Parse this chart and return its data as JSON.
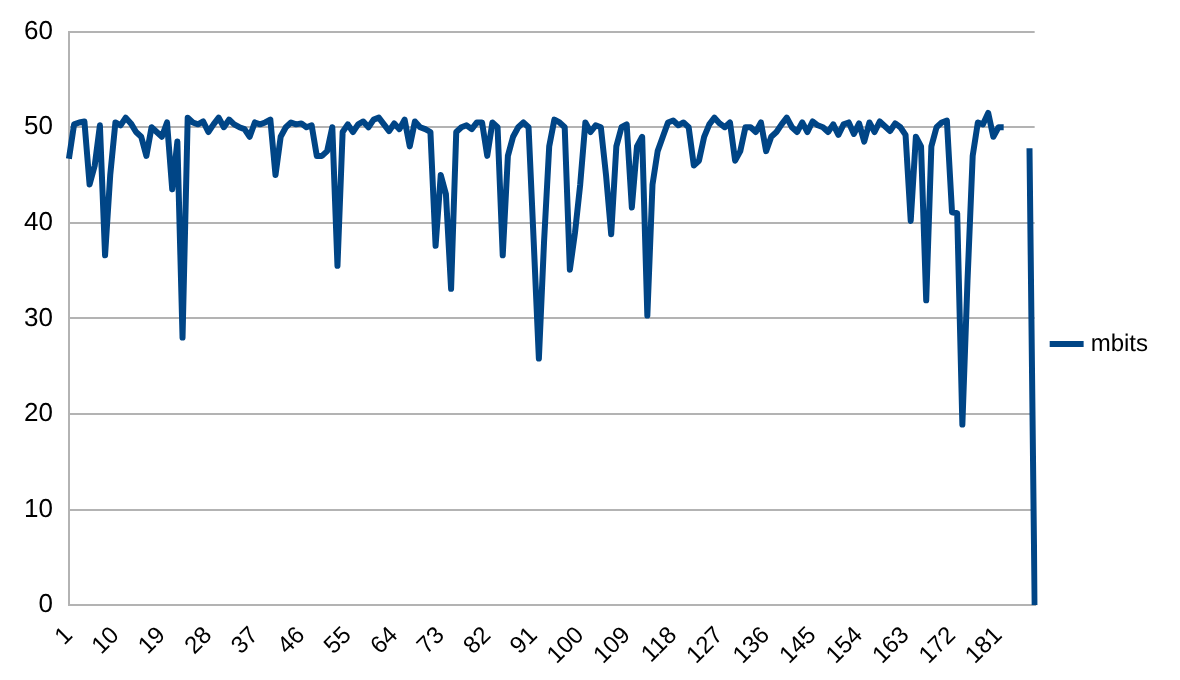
{
  "chart_data": {
    "type": "line",
    "categories": [
      "1",
      null,
      null,
      null,
      null,
      null,
      null,
      null,
      null,
      "10",
      null,
      null,
      null,
      null,
      null,
      null,
      null,
      null,
      "19",
      null,
      null,
      null,
      null,
      null,
      null,
      null,
      null,
      "28",
      null,
      null,
      null,
      null,
      null,
      null,
      null,
      null,
      "37",
      null,
      null,
      null,
      null,
      null,
      null,
      null,
      null,
      "46",
      null,
      null,
      null,
      null,
      null,
      null,
      null,
      null,
      "55",
      null,
      null,
      null,
      null,
      null,
      null,
      null,
      null,
      "64",
      null,
      null,
      null,
      null,
      null,
      null,
      null,
      null,
      "73",
      null,
      null,
      null,
      null,
      null,
      null,
      null,
      null,
      "82",
      null,
      null,
      null,
      null,
      null,
      null,
      null,
      null,
      "91",
      null,
      null,
      null,
      null,
      null,
      null,
      null,
      null,
      "100",
      null,
      null,
      null,
      null,
      null,
      null,
      null,
      null,
      "109",
      null,
      null,
      null,
      null,
      null,
      null,
      null,
      null,
      "118",
      null,
      null,
      null,
      null,
      null,
      null,
      null,
      null,
      "127",
      null,
      null,
      null,
      null,
      null,
      null,
      null,
      null,
      "136",
      null,
      null,
      null,
      null,
      null,
      null,
      null,
      null,
      "145",
      null,
      null,
      null,
      null,
      null,
      null,
      null,
      null,
      "154",
      null,
      null,
      null,
      null,
      null,
      null,
      null,
      null,
      "163",
      null,
      null,
      null,
      null,
      null,
      null,
      null,
      null,
      "172",
      null,
      null,
      null,
      null,
      null,
      null,
      null,
      null,
      "181",
      null,
      null,
      null,
      null,
      null,
      null,
      null
    ],
    "series": [
      {
        "name": "mbits",
        "color": "#004586",
        "values": [
          46.7,
          50.3,
          50.5,
          50.6,
          44,
          46,
          50.2,
          36.6,
          45,
          50.5,
          50.2,
          51,
          50.4,
          49.5,
          49,
          47,
          50,
          49.5,
          49,
          50.5,
          43.5,
          48.5,
          28,
          51,
          50.5,
          50.3,
          50.6,
          49.5,
          50.3,
          51,
          50,
          50.8,
          50.3,
          50,
          49.8,
          49,
          50.5,
          50.3,
          50.5,
          50.8,
          45,
          49,
          50,
          50.5,
          50.3,
          50.4,
          50,
          50.2,
          47,
          47,
          47.5,
          50,
          35.5,
          49.5,
          50.3,
          49.5,
          50.3,
          50.6,
          50,
          50.8,
          51,
          50.3,
          49.6,
          50.4,
          49.8,
          50.8,
          48,
          50.6,
          50,
          49.8,
          49.5,
          37.6,
          45,
          43,
          33.1,
          49.5,
          50,
          50.2,
          49.8,
          50.5,
          50.5,
          47,
          50.5,
          50,
          36.6,
          47,
          49,
          50,
          50.5,
          50,
          38,
          25.8,
          38,
          48,
          50.8,
          50.5,
          50,
          35.1,
          39,
          44,
          50.5,
          49.5,
          50.2,
          50,
          45,
          38.8,
          48,
          50,
          50.3,
          41.6,
          48,
          49,
          30.3,
          44,
          47.5,
          49,
          50.5,
          50.7,
          50.2,
          50.5,
          50,
          46,
          46.5,
          49,
          50.3,
          51,
          50.4,
          50,
          50.5,
          46.5,
          47.5,
          50,
          50,
          49.5,
          50.5,
          47.5,
          49,
          49.5,
          50.3,
          51,
          50,
          49.5,
          50.5,
          49.5,
          50.6,
          50.2,
          50,
          49.5,
          50.3,
          49.2,
          50.3,
          50.5,
          49.3,
          50.4,
          48.5,
          50.5,
          49.5,
          50.6,
          50.1,
          49.6,
          50.4,
          50,
          49.2,
          40.2,
          49,
          48,
          31.9,
          48,
          50,
          50.5,
          50.7,
          41.1,
          41,
          18.9,
          34,
          47,
          50.5,
          50.3,
          51.5,
          49,
          50,
          50,
          null,
          null,
          null,
          null,
          47.8,
          0
        ]
      }
    ],
    "ylim": [
      0,
      60
    ],
    "yticks": [
      0,
      10,
      20,
      30,
      40,
      50,
      60
    ],
    "grid": "y",
    "legend": "right",
    "marker": "none",
    "line_style": "solid"
  }
}
